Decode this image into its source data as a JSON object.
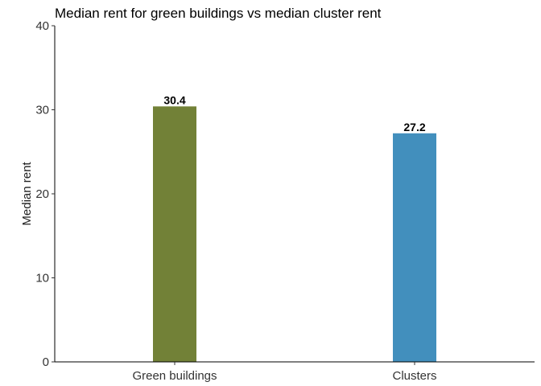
{
  "chart_data": {
    "type": "bar",
    "title": "Median rent for green buildings vs median cluster rent",
    "xlabel": "",
    "ylabel": "Median rent",
    "categories": [
      "Green buildings",
      "Clusters"
    ],
    "values": [
      30.4,
      27.2
    ],
    "data_labels": [
      "30.4",
      "27.2"
    ],
    "bar_colors": [
      "#728137",
      "#428FBD"
    ],
    "ylim": [
      0,
      40
    ],
    "yticks": [
      0,
      10,
      20,
      30,
      40
    ],
    "grid": false,
    "legend": "none"
  }
}
